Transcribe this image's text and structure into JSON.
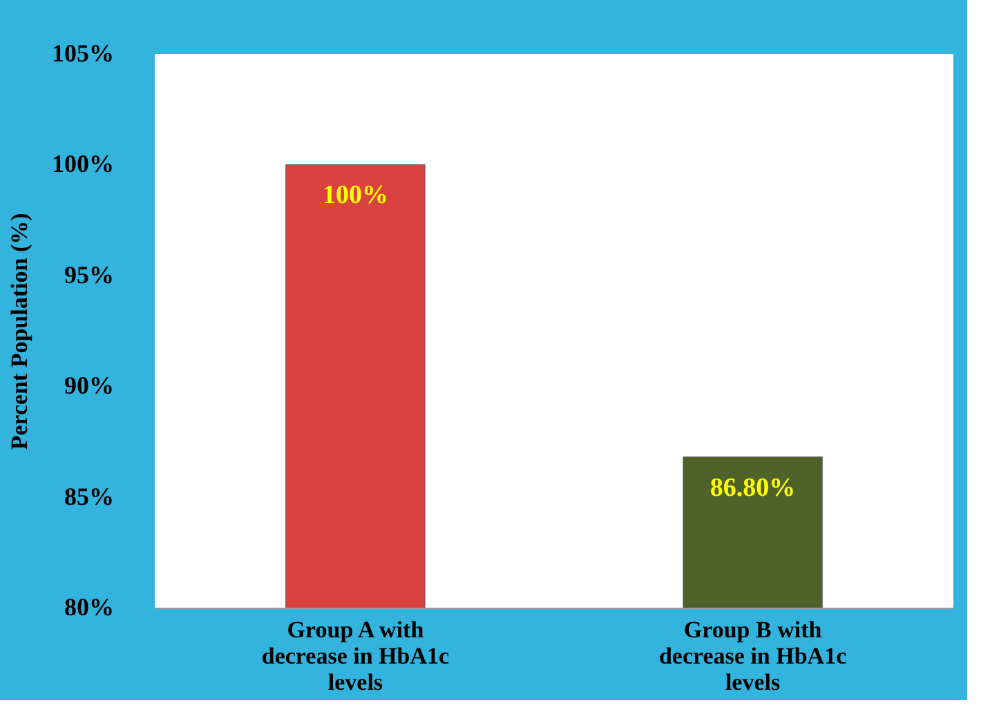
{
  "chart_data": {
    "type": "bar",
    "ylabel": "Percent Population (%)",
    "categories": [
      "Group A with decrease in HbA1c levels",
      "Group B with decrease in HbA1c levels"
    ],
    "values": [
      100,
      86.8
    ],
    "colors": [
      "#d9423f",
      "#4f6228"
    ],
    "value_labels": [
      "100%",
      "86.80%"
    ],
    "ylim": [
      80,
      105
    ],
    "yticks": [
      {
        "value": 80,
        "label": "80%"
      },
      {
        "value": 85,
        "label": "85%"
      },
      {
        "value": 90,
        "label": "90%"
      },
      {
        "value": 95,
        "label": "95%"
      },
      {
        "value": 100,
        "label": "100%"
      },
      {
        "value": 105,
        "label": "105%"
      }
    ],
    "grid": false
  }
}
